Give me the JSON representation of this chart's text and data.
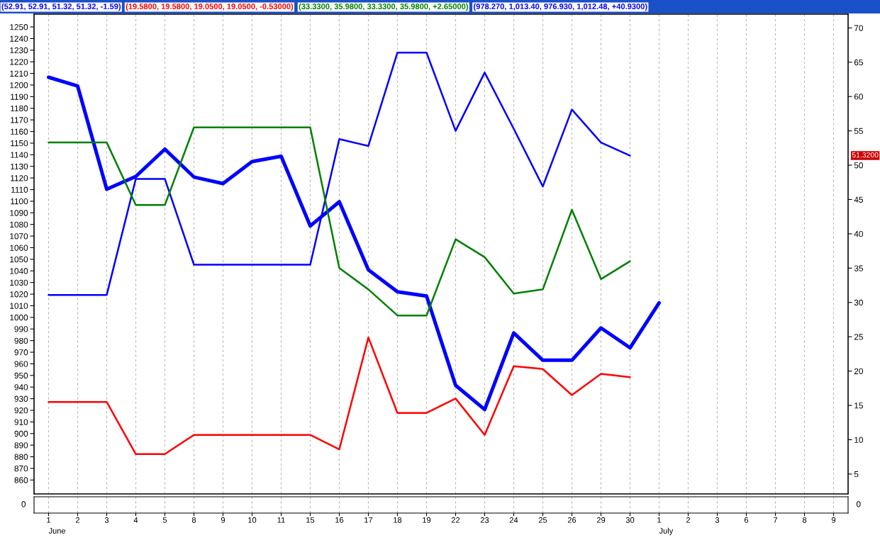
{
  "chart_data": [
    {
      "type": "line",
      "categories": [
        "1",
        "2",
        "3",
        "4",
        "5",
        "8",
        "9",
        "10",
        "11",
        "15",
        "16",
        "17",
        "18",
        "19",
        "22",
        "23",
        "24",
        "25",
        "26",
        "29",
        "30",
        "1",
        "2",
        "3",
        "6",
        "7",
        "8",
        "9"
      ],
      "series": [
        {
          "color": "#0000ff",
          "axis": "y2",
          "values": [
            31.1,
            31.1,
            31.1,
            48.0,
            48.0,
            35.5,
            35.5,
            35.5,
            35.5,
            35.5,
            53.8,
            52.8,
            66.4,
            66.4,
            55.0,
            63.5,
            55.3,
            46.9,
            58.1,
            53.3,
            51.4,
            null,
            null,
            null,
            null,
            null,
            null,
            null
          ]
        },
        {
          "color": "#ff0000",
          "axis": "y2",
          "values": [
            15.5,
            15.5,
            15.5,
            7.9,
            7.9,
            10.7,
            10.7,
            10.7,
            10.7,
            10.7,
            8.6,
            24.9,
            13.9,
            13.9,
            16.0,
            10.7,
            20.7,
            20.3,
            16.5,
            19.6,
            19.1,
            null,
            null,
            null,
            null,
            null,
            null,
            null
          ]
        },
        {
          "color": "#008000",
          "axis": "y2",
          "values": [
            53.3,
            53.3,
            53.3,
            44.2,
            44.2,
            55.5,
            55.5,
            55.5,
            55.5,
            55.5,
            35.0,
            31.9,
            28.1,
            28.1,
            39.2,
            36.6,
            31.3,
            31.9,
            43.5,
            33.4,
            36.0,
            null,
            null,
            null,
            null,
            null,
            null,
            null
          ]
        },
        {
          "color": "#0000ff",
          "axis": "y",
          "values": [
            1206.7,
            1199.1,
            1110.3,
            1121.3,
            1144.8,
            1120.8,
            1115.2,
            1134.1,
            1138.7,
            1078.7,
            1099.5,
            1040.9,
            1022.0,
            1018.3,
            941.5,
            920.7,
            986.6,
            963.1,
            963.1,
            990.9,
            973.8,
            1012.5,
            null,
            null,
            null,
            null,
            null,
            null
          ]
        }
      ],
      "ylim": [
        848,
        1261
      ],
      "yticks": [
        860,
        870,
        880,
        890,
        900,
        910,
        920,
        930,
        940,
        950,
        960,
        970,
        980,
        990,
        1000,
        1010,
        1020,
        1030,
        1040,
        1050,
        1060,
        1070,
        1080,
        1090,
        1100,
        1110,
        1120,
        1130,
        1140,
        1150,
        1160,
        1170,
        1180,
        1190,
        1200,
        1210,
        1220,
        1230,
        1240,
        1250
      ],
      "y2lim": [
        2.1,
        72
      ],
      "y2ticks": [
        5,
        10,
        15,
        20,
        25,
        30,
        35,
        40,
        45,
        50,
        55,
        60,
        65,
        70
      ],
      "grid": "x",
      "annotations": [
        "(52.91, 52.91, 51.32, 51.32, -1.59)",
        "(19.5800, 19.5800, 19.0500, 19.0500, -0.53000)",
        "(33.3300, 35.9800, 33.3300, 35.9800, +2.65000)",
        "(978.270, 1,013.40, 976.930, 1,012.48, +40.9300)",
        "51.3200",
        "June",
        "July"
      ]
    },
    {
      "type": "other",
      "annotations": [
        "0",
        "0"
      ]
    }
  ]
}
